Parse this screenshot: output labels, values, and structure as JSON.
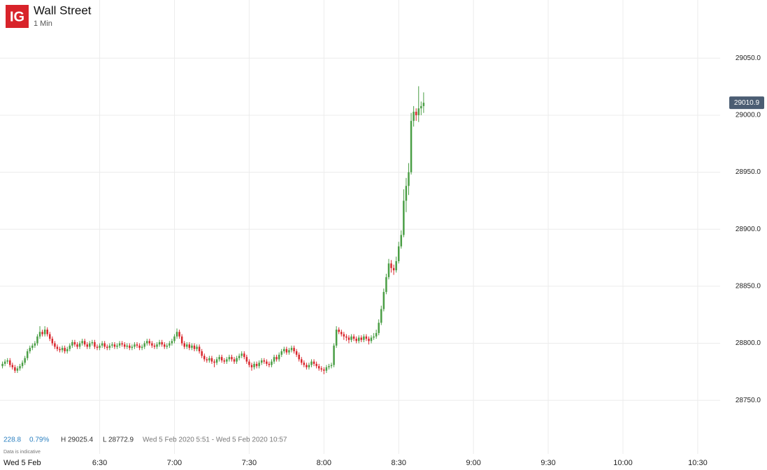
{
  "chart_data": {
    "type": "candlestick",
    "logo": "IG",
    "title": "Wall Street",
    "subtitle": "1 Min",
    "date_label": "Wed 5 Feb",
    "last_price": 29010.9,
    "stats": {
      "change": "228.8",
      "change_pct": "0.79%",
      "high": "H 29025.4",
      "low": "L 28772.9",
      "range": "Wed 5 Feb 2020 5:51 - Wed 5 Feb 2020 10:57",
      "note": "Data is indicative"
    },
    "up_color": "#4a9e45",
    "down_color": "#d9262c",
    "grid": true,
    "xlim": [
      "5:50",
      "10:39"
    ],
    "xticks": [
      "6:30",
      "7:00",
      "7:30",
      "8:00",
      "8:30",
      "9:00",
      "9:30",
      "10:00",
      "10:30"
    ],
    "ylim": [
      28703,
      29101
    ],
    "yticks": [
      {
        "value": 28750,
        "label": "28750.0"
      },
      {
        "value": 28800,
        "label": "28800.0"
      },
      {
        "value": 28850,
        "label": "28850.0"
      },
      {
        "value": 28900,
        "label": "28900.0"
      },
      {
        "value": 28950,
        "label": "28950.0"
      },
      {
        "value": 29000,
        "label": "29000.0"
      },
      {
        "value": 29050,
        "label": "29050.0"
      }
    ],
    "x": [
      "5:51",
      "5:52",
      "5:53",
      "5:54",
      "5:55",
      "5:56",
      "5:57",
      "5:58",
      "5:59",
      "6:00",
      "6:01",
      "6:02",
      "6:03",
      "6:04",
      "6:05",
      "6:06",
      "6:07",
      "6:08",
      "6:09",
      "6:10",
      "6:11",
      "6:12",
      "6:13",
      "6:14",
      "6:15",
      "6:16",
      "6:17",
      "6:18",
      "6:19",
      "6:20",
      "6:21",
      "6:22",
      "6:23",
      "6:24",
      "6:25",
      "6:26",
      "6:27",
      "6:28",
      "6:29",
      "6:30",
      "6:31",
      "6:32",
      "6:33",
      "6:34",
      "6:35",
      "6:36",
      "6:37",
      "6:38",
      "6:39",
      "6:40",
      "6:41",
      "6:42",
      "6:43",
      "6:44",
      "6:45",
      "6:46",
      "6:47",
      "6:48",
      "6:49",
      "6:50",
      "6:51",
      "6:52",
      "6:53",
      "6:54",
      "6:55",
      "6:56",
      "6:57",
      "6:58",
      "6:59",
      "7:00",
      "7:01",
      "7:02",
      "7:03",
      "7:04",
      "7:05",
      "7:06",
      "7:07",
      "7:08",
      "7:09",
      "7:10",
      "7:11",
      "7:12",
      "7:13",
      "7:14",
      "7:15",
      "7:16",
      "7:17",
      "7:18",
      "7:19",
      "7:20",
      "7:21",
      "7:22",
      "7:23",
      "7:24",
      "7:25",
      "7:26",
      "7:27",
      "7:28",
      "7:29",
      "7:30",
      "7:31",
      "7:32",
      "7:33",
      "7:34",
      "7:35",
      "7:36",
      "7:37",
      "7:38",
      "7:39",
      "7:40",
      "7:41",
      "7:42",
      "7:43",
      "7:44",
      "7:45",
      "7:46",
      "7:47",
      "7:48",
      "7:49",
      "7:50",
      "7:51",
      "7:52",
      "7:53",
      "7:54",
      "7:55",
      "7:56",
      "7:57",
      "7:58",
      "7:59",
      "8:00",
      "8:01",
      "8:02",
      "8:03",
      "8:04",
      "8:05",
      "8:06",
      "8:07",
      "8:08",
      "8:09",
      "8:10",
      "8:11",
      "8:12",
      "8:13",
      "8:14",
      "8:15",
      "8:16",
      "8:17",
      "8:18",
      "8:19",
      "8:20",
      "8:21",
      "8:22",
      "8:23",
      "8:24",
      "8:25",
      "8:26",
      "8:27",
      "8:28",
      "8:29",
      "8:30",
      "8:31",
      "8:32",
      "8:33",
      "8:34",
      "8:35",
      "8:36",
      "8:37",
      "8:38",
      "8:39",
      "8:40"
    ],
    "open": [
      28780,
      28782,
      28784,
      28785,
      28781,
      28779,
      28776,
      28778,
      28780,
      28783,
      28787,
      28793,
      28796,
      28798,
      28800,
      28806,
      28810,
      28808,
      28812,
      28808,
      28804,
      28800,
      28797,
      28795,
      28794,
      28796,
      28793,
      28795,
      28798,
      28801,
      28799,
      28797,
      28800,
      28802,
      28799,
      28797,
      28800,
      28801,
      28797,
      28796,
      28798,
      28800,
      28797,
      28796,
      28798,
      28799,
      28797,
      28798,
      28800,
      28799,
      28797,
      28798,
      28796,
      28797,
      28799,
      28798,
      28796,
      28797,
      28800,
      28802,
      28800,
      28798,
      28797,
      28799,
      28801,
      28799,
      28797,
      28798,
      28800,
      28802,
      28806,
      28810,
      28806,
      28800,
      28797,
      28799,
      28796,
      28798,
      28795,
      28797,
      28793,
      28789,
      28786,
      28785,
      28787,
      28784,
      28783,
      28786,
      28788,
      28785,
      28784,
      28786,
      28788,
      28786,
      28784,
      28787,
      28789,
      28791,
      28788,
      28784,
      28781,
      28779,
      28782,
      28780,
      28783,
      28785,
      28784,
      28782,
      28781,
      28784,
      28788,
      28786,
      28790,
      28793,
      28795,
      28792,
      28794,
      28796,
      28793,
      28790,
      28786,
      28783,
      28781,
      28779,
      28781,
      28784,
      28782,
      28780,
      28778,
      28777,
      28776,
      28779,
      28780,
      28781,
      28798,
      28812,
      28810,
      28808,
      28806,
      28805,
      28803,
      28806,
      28804,
      28802,
      28805,
      28803,
      28806,
      28804,
      28802,
      28805,
      28806,
      28809,
      28818,
      28830,
      28845,
      28858,
      28870,
      28866,
      28864,
      28872,
      28885,
      28895,
      28925,
      28938,
      28950,
      28995,
      29003,
      29000,
      29006,
      29008
    ],
    "high": [
      28784,
      28786,
      28787,
      28787,
      28783,
      28781,
      28780,
      28782,
      28785,
      28789,
      28795,
      28798,
      28800,
      28802,
      28808,
      28815,
      28812,
      28815,
      28814,
      28810,
      28806,
      28802,
      28799,
      28797,
      28798,
      28798,
      28797,
      28800,
      28803,
      28803,
      28801,
      28802,
      28804,
      28804,
      28801,
      28802,
      28803,
      28803,
      28799,
      28800,
      28802,
      28802,
      28799,
      28800,
      28801,
      28801,
      28800,
      28802,
      28802,
      28801,
      28800,
      28800,
      28799,
      28801,
      28801,
      28800,
      28799,
      28802,
      28804,
      28804,
      28802,
      28800,
      28801,
      28803,
      28803,
      28801,
      28800,
      28802,
      28804,
      28808,
      28813,
      28812,
      28808,
      28802,
      28801,
      28801,
      28800,
      28800,
      28799,
      28799,
      28795,
      28791,
      28788,
      28789,
      28789,
      28786,
      28788,
      28790,
      28790,
      28787,
      28788,
      28790,
      28790,
      28788,
      28789,
      28791,
      28793,
      28793,
      28790,
      28786,
      28783,
      28784,
      28784,
      28785,
      28787,
      28787,
      28786,
      28784,
      28786,
      28790,
      28790,
      28792,
      28795,
      28797,
      28797,
      28796,
      28798,
      28798,
      28795,
      28792,
      28788,
      28785,
      28783,
      28783,
      28786,
      28786,
      28784,
      28782,
      28780,
      28779,
      28781,
      28782,
      28783,
      28800,
      28815,
      28814,
      28812,
      28810,
      28808,
      28807,
      28808,
      28808,
      28806,
      28807,
      28807,
      28808,
      28808,
      28806,
      28807,
      28809,
      28812,
      28821,
      28833,
      28848,
      28861,
      28874,
      28873,
      28869,
      28876,
      28889,
      28899,
      28935,
      28945,
      28958,
      29002,
      29008,
      29006,
      29025.4,
      29012,
      29020
    ],
    "low": [
      28778,
      28780,
      28782,
      28779,
      28777,
      28774,
      28774,
      28776,
      28778,
      28781,
      28785,
      28791,
      28794,
      28796,
      28798,
      28804,
      28806,
      28806,
      28806,
      28802,
      28798,
      28795,
      28793,
      28792,
      28792,
      28791,
      28791,
      28793,
      28796,
      28797,
      28795,
      28795,
      28798,
      28797,
      28795,
      28795,
      28798,
      28795,
      28794,
      28794,
      28796,
      28795,
      28794,
      28794,
      28796,
      28795,
      28795,
      28796,
      28797,
      28795,
      28795,
      28794,
      28794,
      28795,
      28796,
      28794,
      28794,
      28795,
      28798,
      28798,
      28796,
      28795,
      28795,
      28797,
      28797,
      28795,
      28795,
      28796,
      28798,
      28800,
      28804,
      28804,
      28798,
      28795,
      28795,
      28794,
      28794,
      28793,
      28793,
      28791,
      28787,
      28784,
      28783,
      28783,
      28782,
      28779,
      28781,
      28784,
      28783,
      28782,
      28782,
      28784,
      28784,
      28782,
      28782,
      28785,
      28787,
      28786,
      28782,
      28779,
      28776,
      28777,
      28778,
      28778,
      28781,
      28782,
      28780,
      28779,
      28779,
      28782,
      28784,
      28784,
      28788,
      28791,
      28790,
      28790,
      28792,
      28791,
      28788,
      28784,
      28781,
      28779,
      28777,
      28777,
      28779,
      28780,
      28778,
      28776,
      28775,
      28772.9,
      28774,
      28777,
      28778,
      28779,
      28796,
      28808,
      28806,
      28803,
      28802,
      28800,
      28801,
      28802,
      28800,
      28800,
      28801,
      28801,
      28802,
      28799,
      28800,
      28803,
      28804,
      28807,
      28816,
      28828,
      28843,
      28856,
      28862,
      28860,
      28862,
      28870,
      28883,
      28893,
      28915,
      28930,
      28948,
      28990,
      28995,
      28994,
      29000,
      29002
    ],
    "close": [
      28782,
      28784,
      28785,
      28781,
      28779,
      28776,
      28778,
      28780,
      28783,
      28787,
      28793,
      28796,
      28798,
      28800,
      28806,
      28810,
      28808,
      28812,
      28808,
      28804,
      28800,
      28797,
      28795,
      28794,
      28796,
      28793,
      28795,
      28798,
      28801,
      28799,
      28797,
      28800,
      28802,
      28799,
      28797,
      28800,
      28801,
      28797,
      28796,
      28798,
      28800,
      28797,
      28796,
      28798,
      28799,
      28797,
      28798,
      28800,
      28799,
      28797,
      28798,
      28796,
      28797,
      28799,
      28798,
      28796,
      28797,
      28800,
      28802,
      28800,
      28798,
      28797,
      28799,
      28801,
      28799,
      28797,
      28798,
      28800,
      28802,
      28806,
      28810,
      28806,
      28800,
      28797,
      28799,
      28796,
      28798,
      28795,
      28797,
      28793,
      28789,
      28786,
      28785,
      28787,
      28784,
      28783,
      28786,
      28788,
      28785,
      28784,
      28786,
      28788,
      28786,
      28784,
      28787,
      28789,
      28791,
      28788,
      28784,
      28781,
      28779,
      28782,
      28780,
      28783,
      28785,
      28784,
      28782,
      28781,
      28784,
      28788,
      28786,
      28790,
      28793,
      28795,
      28792,
      28794,
      28796,
      28793,
      28790,
      28786,
      28783,
      28781,
      28779,
      28781,
      28784,
      28782,
      28780,
      28778,
      28777,
      28776,
      28779,
      28780,
      28781,
      28798,
      28812,
      28810,
      28808,
      28806,
      28805,
      28803,
      28806,
      28804,
      28802,
      28805,
      28803,
      28806,
      28804,
      28802,
      28805,
      28806,
      28809,
      28818,
      28830,
      28845,
      28858,
      28870,
      28866,
      28864,
      28872,
      28885,
      28895,
      28925,
      28938,
      28950,
      28995,
      29003,
      29000,
      29006,
      29008,
      29010.9
    ]
  }
}
